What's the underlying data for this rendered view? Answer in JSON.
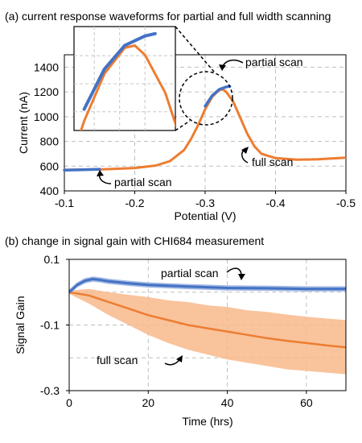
{
  "panels": {
    "a": {
      "caption": "(a) current response waveforms for partial and full width scanning"
    },
    "b": {
      "caption": "(b) change in signal gain with CHI684 measurement"
    }
  },
  "colors": {
    "partial": "#4472C4",
    "partial_band": "#9DB5E3",
    "full": "#ED7D31",
    "full_band": "#F8B88B"
  },
  "chart_data": [
    {
      "type": "line",
      "panel": "a",
      "xlabel": "Potential (V)",
      "ylabel": "Current (nA)",
      "xlim": [
        -0.1,
        -0.5
      ],
      "ylim": [
        400,
        1500
      ],
      "xticks": [
        -0.1,
        -0.2,
        -0.3,
        -0.4,
        -0.5
      ],
      "xtick_labels": [
        "-0.1",
        "-0.2",
        "-0.3",
        "-0.4",
        "-0.5"
      ],
      "yticks": [
        400,
        600,
        800,
        1000,
        1200,
        1400
      ],
      "ytick_labels": [
        "400",
        "600",
        "800",
        "1000",
        "1200",
        "1400"
      ],
      "grid": true,
      "annotations": [
        "partial scan",
        "full scan",
        "partial scan"
      ],
      "inset": "zoom of peak region around -0.32 V",
      "series": [
        {
          "key": "full",
          "points": [
            [
              -0.1,
              570
            ],
            [
              -0.15,
              573
            ],
            [
              -0.2,
              585
            ],
            [
              -0.23,
              605
            ],
            [
              -0.25,
              640
            ],
            [
              -0.27,
              730
            ],
            [
              -0.28,
              820
            ],
            [
              -0.29,
              930
            ],
            [
              -0.3,
              1060
            ],
            [
              -0.31,
              1160
            ],
            [
              -0.32,
              1215
            ],
            [
              -0.325,
              1220
            ],
            [
              -0.33,
              1200
            ],
            [
              -0.34,
              1120
            ],
            [
              -0.35,
              990
            ],
            [
              -0.36,
              860
            ],
            [
              -0.37,
              760
            ],
            [
              -0.38,
              700
            ],
            [
              -0.4,
              665
            ],
            [
              -0.43,
              652
            ],
            [
              -0.46,
              655
            ],
            [
              -0.5,
              668
            ]
          ]
        },
        {
          "key": "partial",
          "segments": [
            [
              [
                -0.1,
                568
              ],
              [
                -0.12,
                570
              ],
              [
                -0.15,
                575
              ]
            ],
            [
              [
                -0.3,
                1085
              ],
              [
                -0.31,
                1170
              ],
              [
                -0.32,
                1220
              ],
              [
                -0.33,
                1240
              ],
              [
                -0.335,
                1245
              ]
            ]
          ]
        }
      ]
    },
    {
      "type": "line",
      "panel": "b",
      "xlabel": "Time (hrs)",
      "ylabel": "Signal Gain",
      "xlim": [
        0,
        70
      ],
      "ylim": [
        -0.3,
        0.1
      ],
      "xticks": [
        0,
        20,
        40,
        60
      ],
      "xtick_labels": [
        "0",
        "20",
        "40",
        "60"
      ],
      "yticks": [
        0.1,
        -0.1,
        -0.3
      ],
      "ytick_labels": [
        "0.1",
        "-0.1",
        "-0.3"
      ],
      "grid": true,
      "annotations": [
        "partial scan",
        "full scan"
      ],
      "series": [
        {
          "key": "partial",
          "mean": [
            [
              0,
              0.0
            ],
            [
              2,
              0.022
            ],
            [
              4,
              0.035
            ],
            [
              6,
              0.04
            ],
            [
              8,
              0.037
            ],
            [
              10,
              0.033
            ],
            [
              15,
              0.027
            ],
            [
              20,
              0.022
            ],
            [
              30,
              0.017
            ],
            [
              40,
              0.013
            ],
            [
              50,
              0.012
            ],
            [
              60,
              0.01
            ],
            [
              70,
              0.01
            ]
          ],
          "band": 0.008
        },
        {
          "key": "full",
          "mean": [
            [
              0,
              0.0
            ],
            [
              5,
              -0.01
            ],
            [
              10,
              -0.03
            ],
            [
              15,
              -0.05
            ],
            [
              20,
              -0.07
            ],
            [
              25,
              -0.085
            ],
            [
              30,
              -0.1
            ],
            [
              35,
              -0.11
            ],
            [
              40,
              -0.12
            ],
            [
              45,
              -0.13
            ],
            [
              50,
              -0.14
            ],
            [
              55,
              -0.148
            ],
            [
              60,
              -0.155
            ],
            [
              65,
              -0.162
            ],
            [
              70,
              -0.168
            ]
          ],
          "band_lower": [
            [
              0,
              -0.005
            ],
            [
              5,
              -0.035
            ],
            [
              10,
              -0.07
            ],
            [
              15,
              -0.1
            ],
            [
              20,
              -0.13
            ],
            [
              25,
              -0.155
            ],
            [
              30,
              -0.175
            ],
            [
              35,
              -0.19
            ],
            [
              40,
              -0.205
            ],
            [
              45,
              -0.215
            ],
            [
              50,
              -0.225
            ],
            [
              55,
              -0.235
            ],
            [
              60,
              -0.24
            ],
            [
              65,
              -0.245
            ],
            [
              70,
              -0.25
            ]
          ],
          "band_upper": [
            [
              0,
              0.005
            ],
            [
              5,
              0.01
            ],
            [
              10,
              0.0
            ],
            [
              15,
              -0.008
            ],
            [
              20,
              -0.015
            ],
            [
              25,
              -0.025
            ],
            [
              30,
              -0.03
            ],
            [
              35,
              -0.04
            ],
            [
              40,
              -0.045
            ],
            [
              45,
              -0.055
            ],
            [
              50,
              -0.06
            ],
            [
              55,
              -0.068
            ],
            [
              60,
              -0.075
            ],
            [
              65,
              -0.08
            ],
            [
              70,
              -0.085
            ]
          ]
        }
      ]
    }
  ]
}
